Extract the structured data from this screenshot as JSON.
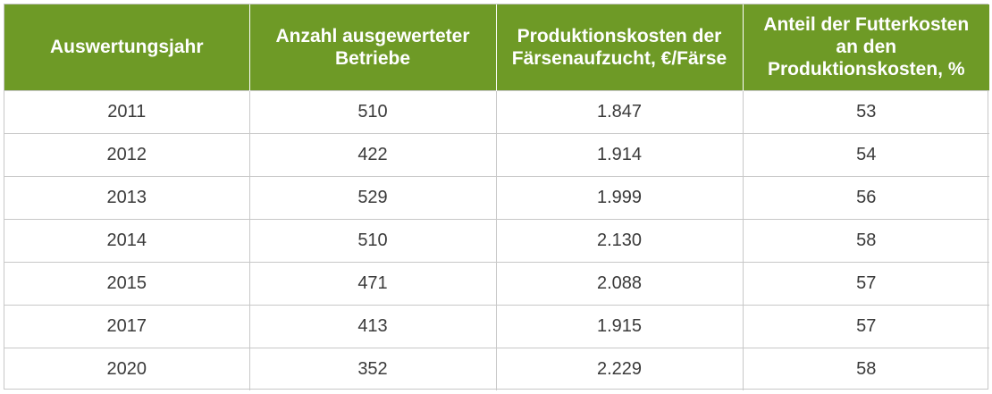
{
  "table": {
    "headers": [
      "Auswertungsjahr",
      "Anzahl ausgewerteter Betriebe",
      "Produktionskosten der Färsenaufzucht, €/Färse",
      "Anteil der Futterkosten an den Produktionskosten, %"
    ],
    "rows": [
      [
        "2011",
        "510",
        "1.847",
        "53"
      ],
      [
        "2012",
        "422",
        "1.914",
        "54"
      ],
      [
        "2013",
        "529",
        "1.999",
        "56"
      ],
      [
        "2014",
        "510",
        "2.130",
        "58"
      ],
      [
        "2015",
        "471",
        "2.088",
        "57"
      ],
      [
        "2017",
        "413",
        "1.915",
        "57"
      ],
      [
        "2020",
        "352",
        "2.229",
        "58"
      ]
    ]
  },
  "colors": {
    "header_background": "#6e9a26",
    "header_text": "#ffffff",
    "cell_text": "#3a3a3a",
    "grid_lines": "#c8c8c8"
  }
}
